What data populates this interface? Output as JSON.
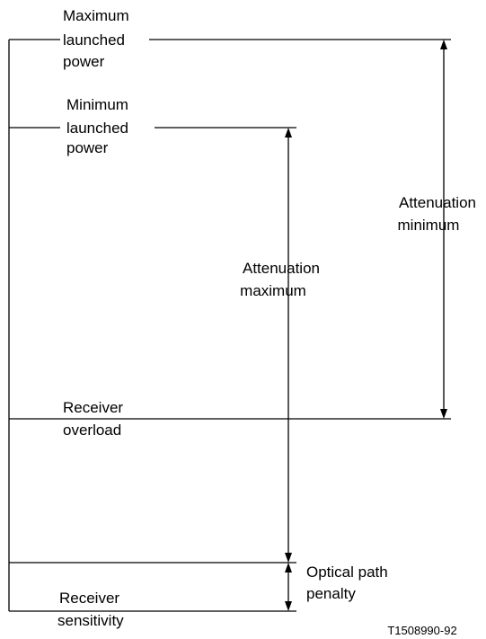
{
  "levels": [
    {
      "lines": [
        "Maximum",
        "launched",
        "power"
      ]
    },
    {
      "lines": [
        "Minimum",
        "launched",
        "power"
      ]
    },
    {
      "lines": [
        "Receiver",
        "overload"
      ]
    },
    {
      "lines": [
        "Receiver",
        "sensitivity"
      ]
    }
  ],
  "ranges": [
    {
      "lines": [
        "Attenuation",
        "minimum"
      ]
    },
    {
      "lines": [
        "Attenuation",
        "maximum"
      ]
    },
    {
      "lines": [
        "Optical path",
        "penalty"
      ]
    }
  ],
  "figure_id": "T1508990-92"
}
